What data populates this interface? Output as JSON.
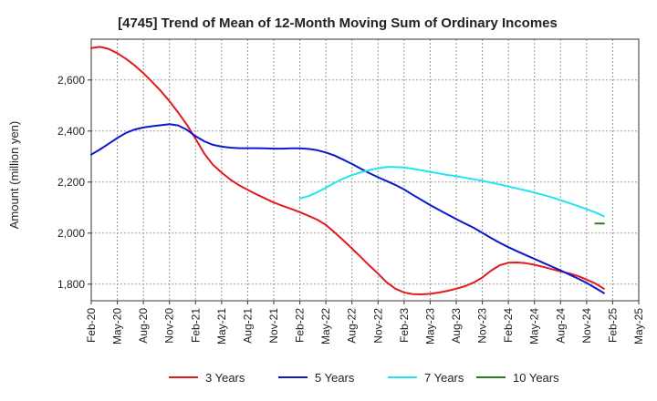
{
  "chart_data": {
    "type": "line",
    "title": "[4745]  Trend of Mean of 12-Month Moving Sum of Ordinary Incomes",
    "xlabel": "",
    "ylabel": "Amount (million yen)",
    "ylim": [
      1735,
      2760
    ],
    "yticks": [
      1800,
      2000,
      2200,
      2400,
      2600
    ],
    "ytick_labels": [
      "1,800",
      "2,000",
      "2,200",
      "2,400",
      "2,600"
    ],
    "xticks": [
      "Feb-20",
      "May-20",
      "Aug-20",
      "Nov-20",
      "Feb-21",
      "May-21",
      "Aug-21",
      "Nov-21",
      "Feb-22",
      "May-22",
      "Aug-22",
      "Nov-22",
      "Feb-23",
      "May-23",
      "Aug-23",
      "Nov-23",
      "Feb-24",
      "May-24",
      "Aug-24",
      "Nov-24",
      "Feb-25",
      "May-25"
    ],
    "grid": true,
    "legend_position": "bottom",
    "series": [
      {
        "name": "3 Years",
        "color": "#e31a1c",
        "start_index": 0,
        "values": [
          2725,
          2730,
          2722,
          2705,
          2683,
          2657,
          2627,
          2593,
          2557,
          2517,
          2473,
          2425,
          2370,
          2312,
          2268,
          2237,
          2210,
          2188,
          2170,
          2152,
          2136,
          2120,
          2107,
          2095,
          2082,
          2068,
          2053,
          2032,
          2003,
          1972,
          1940,
          1907,
          1873,
          1841,
          1807,
          1782,
          1767,
          1761,
          1760,
          1762,
          1767,
          1774,
          1782,
          1792,
          1806,
          1826,
          1853,
          1874,
          1884,
          1885,
          1882,
          1876,
          1868,
          1859,
          1850,
          1842,
          1832,
          1818,
          1803,
          1782
        ]
      },
      {
        "name": "5 Years",
        "color": "#0a1acb",
        "start_index": 0,
        "values": [
          2308,
          2328,
          2350,
          2373,
          2393,
          2406,
          2414,
          2419,
          2423,
          2427,
          2422,
          2405,
          2380,
          2360,
          2346,
          2339,
          2335,
          2333,
          2333,
          2333,
          2332,
          2331,
          2331,
          2332,
          2332,
          2330,
          2325,
          2316,
          2304,
          2288,
          2271,
          2253,
          2235,
          2219,
          2204,
          2189,
          2171,
          2150,
          2130,
          2110,
          2091,
          2073,
          2055,
          2038,
          2021,
          2001,
          1981,
          1962,
          1945,
          1929,
          1914,
          1899,
          1884,
          1869,
          1854,
          1838,
          1822,
          1805,
          1785,
          1765
        ]
      },
      {
        "name": "7 Years",
        "color": "#22e4ee",
        "start_index": 24,
        "values": [
          2136,
          2145,
          2160,
          2178,
          2197,
          2214,
          2227,
          2238,
          2247,
          2254,
          2259,
          2259,
          2257,
          2252,
          2246,
          2240,
          2234,
          2228,
          2223,
          2217,
          2211,
          2205,
          2198,
          2191,
          2183,
          2175,
          2167,
          2159,
          2150,
          2140,
          2129,
          2118,
          2106,
          2094,
          2081,
          2066
        ]
      },
      {
        "name": "10 Years",
        "color": "#2f7d1d",
        "start_index": 58,
        "values": [
          2038,
          2038
        ]
      }
    ]
  }
}
